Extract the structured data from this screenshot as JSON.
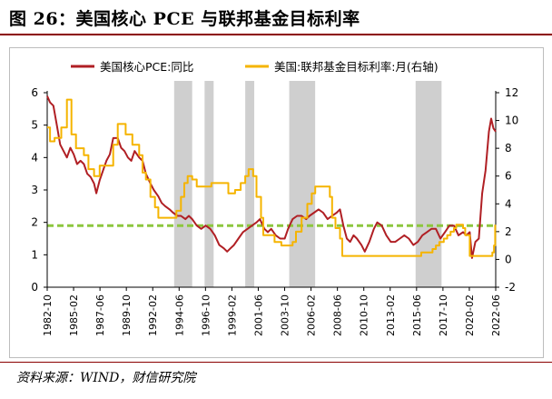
{
  "header": {
    "title": "图 26：美国核心 PCE 与联邦基金目标利率"
  },
  "footer": {
    "source": "资料来源：WIND，财信研究院"
  },
  "colors": {
    "pce": "#b01f24",
    "ffr": "#f5b400",
    "ref_line": "#8dc63f",
    "recession": "#cfcfcf",
    "rule": "#8b0000"
  },
  "chart_data": {
    "type": "line",
    "title": "图 26：美国核心 PCE 与联邦基金目标利率",
    "legend_position": "top",
    "grid": false,
    "x_range": [
      1982.75,
      2022.5
    ],
    "x_tick_labels": [
      "1982-10",
      "1985-02",
      "1987-06",
      "1989-10",
      "1992-02",
      "1994-06",
      "1996-10",
      "1999-02",
      "2001-06",
      "2003-10",
      "2006-02",
      "2008-06",
      "2010-10",
      "2013-02",
      "2015-06",
      "2017-10",
      "2020-02",
      "2022-06"
    ],
    "y_left": {
      "range": [
        0,
        6
      ],
      "ticks": [
        "0",
        "1",
        "2",
        "3",
        "4",
        "5",
        "6"
      ]
    },
    "y_right": {
      "range": [
        -2,
        12
      ],
      "ticks": [
        "-2",
        "0",
        "2",
        "4",
        "6",
        "8",
        "10",
        "12"
      ]
    },
    "reference_line": {
      "axis": "left",
      "value": 1.9
    },
    "shaded_periods": [
      [
        1994.0,
        1995.6
      ],
      [
        1996.7,
        1997.5
      ],
      [
        2000.3,
        2001.1
      ],
      [
        2004.2,
        2006.5
      ],
      [
        2015.4,
        2017.7
      ]
    ],
    "series": [
      {
        "name": "美国核心PCE:同比",
        "axis": "left",
        "style": "line",
        "points": [
          [
            1982.75,
            5.9
          ],
          [
            1983.0,
            5.7
          ],
          [
            1983.3,
            5.6
          ],
          [
            1983.6,
            5.0
          ],
          [
            1983.9,
            4.4
          ],
          [
            1984.2,
            4.2
          ],
          [
            1984.5,
            4.0
          ],
          [
            1984.8,
            4.3
          ],
          [
            1985.1,
            4.1
          ],
          [
            1985.4,
            3.8
          ],
          [
            1985.7,
            3.9
          ],
          [
            1986.0,
            3.8
          ],
          [
            1986.3,
            3.5
          ],
          [
            1986.6,
            3.4
          ],
          [
            1986.9,
            3.2
          ],
          [
            1987.1,
            2.9
          ],
          [
            1987.4,
            3.3
          ],
          [
            1987.7,
            3.6
          ],
          [
            1988.0,
            3.9
          ],
          [
            1988.3,
            4.1
          ],
          [
            1988.6,
            4.6
          ],
          [
            1989.0,
            4.6
          ],
          [
            1989.3,
            4.3
          ],
          [
            1989.6,
            4.2
          ],
          [
            1989.9,
            4.0
          ],
          [
            1990.2,
            3.9
          ],
          [
            1990.5,
            4.2
          ],
          [
            1990.9,
            4.0
          ],
          [
            1991.2,
            3.9
          ],
          [
            1991.5,
            3.5
          ],
          [
            1991.9,
            3.2
          ],
          [
            1992.2,
            3.0
          ],
          [
            1992.6,
            2.8
          ],
          [
            1992.9,
            2.6
          ],
          [
            1993.2,
            2.5
          ],
          [
            1993.6,
            2.4
          ],
          [
            1993.9,
            2.3
          ],
          [
            1994.3,
            2.2
          ],
          [
            1994.6,
            2.2
          ],
          [
            1995.0,
            2.1
          ],
          [
            1995.3,
            2.2
          ],
          [
            1995.6,
            2.1
          ],
          [
            1996.0,
            1.9
          ],
          [
            1996.4,
            1.8
          ],
          [
            1996.8,
            1.9
          ],
          [
            1997.2,
            1.8
          ],
          [
            1997.6,
            1.6
          ],
          [
            1998.0,
            1.3
          ],
          [
            1998.4,
            1.2
          ],
          [
            1998.7,
            1.1
          ],
          [
            1999.0,
            1.2
          ],
          [
            1999.3,
            1.3
          ],
          [
            1999.7,
            1.5
          ],
          [
            2000.1,
            1.7
          ],
          [
            2000.5,
            1.8
          ],
          [
            2000.9,
            1.9
          ],
          [
            2001.3,
            2.0
          ],
          [
            2001.6,
            2.1
          ],
          [
            2002.0,
            1.8
          ],
          [
            2002.3,
            1.7
          ],
          [
            2002.6,
            1.8
          ],
          [
            2003.0,
            1.6
          ],
          [
            2003.4,
            1.5
          ],
          [
            2003.8,
            1.5
          ],
          [
            2004.1,
            1.8
          ],
          [
            2004.5,
            2.1
          ],
          [
            2004.9,
            2.2
          ],
          [
            2005.3,
            2.2
          ],
          [
            2005.7,
            2.1
          ],
          [
            2006.0,
            2.2
          ],
          [
            2006.4,
            2.3
          ],
          [
            2006.8,
            2.4
          ],
          [
            2007.2,
            2.3
          ],
          [
            2007.6,
            2.1
          ],
          [
            2008.0,
            2.2
          ],
          [
            2008.4,
            2.3
          ],
          [
            2008.7,
            2.4
          ],
          [
            2009.0,
            1.9
          ],
          [
            2009.3,
            1.5
          ],
          [
            2009.6,
            1.4
          ],
          [
            2009.9,
            1.6
          ],
          [
            2010.2,
            1.5
          ],
          [
            2010.6,
            1.3
          ],
          [
            2010.9,
            1.1
          ],
          [
            2011.3,
            1.4
          ],
          [
            2011.7,
            1.8
          ],
          [
            2012.0,
            2.0
          ],
          [
            2012.4,
            1.9
          ],
          [
            2012.8,
            1.6
          ],
          [
            2013.2,
            1.4
          ],
          [
            2013.6,
            1.4
          ],
          [
            2014.0,
            1.5
          ],
          [
            2014.4,
            1.6
          ],
          [
            2014.8,
            1.5
          ],
          [
            2015.2,
            1.3
          ],
          [
            2015.6,
            1.4
          ],
          [
            2016.0,
            1.6
          ],
          [
            2016.4,
            1.7
          ],
          [
            2016.8,
            1.8
          ],
          [
            2017.2,
            1.8
          ],
          [
            2017.6,
            1.5
          ],
          [
            2018.0,
            1.7
          ],
          [
            2018.4,
            1.9
          ],
          [
            2018.8,
            1.9
          ],
          [
            2019.2,
            1.6
          ],
          [
            2019.6,
            1.7
          ],
          [
            2019.9,
            1.6
          ],
          [
            2020.2,
            1.7
          ],
          [
            2020.4,
            0.9
          ],
          [
            2020.7,
            1.4
          ],
          [
            2021.0,
            1.5
          ],
          [
            2021.3,
            2.9
          ],
          [
            2021.6,
            3.6
          ],
          [
            2021.9,
            4.8
          ],
          [
            2022.1,
            5.2
          ],
          [
            2022.3,
            4.9
          ],
          [
            2022.5,
            4.8
          ]
        ]
      },
      {
        "name": "美国:联邦基金目标利率:月(右轴)",
        "axis": "right",
        "style": "step",
        "points": [
          [
            1982.75,
            9.5
          ],
          [
            1983.0,
            8.5
          ],
          [
            1983.4,
            8.75
          ],
          [
            1984.0,
            9.5
          ],
          [
            1984.5,
            11.5
          ],
          [
            1984.9,
            9.0
          ],
          [
            1985.3,
            8.0
          ],
          [
            1986.0,
            7.5
          ],
          [
            1986.4,
            6.5
          ],
          [
            1986.9,
            6.0
          ],
          [
            1987.4,
            6.75
          ],
          [
            1987.8,
            6.75
          ],
          [
            1988.2,
            6.75
          ],
          [
            1988.6,
            8.25
          ],
          [
            1989.0,
            9.75
          ],
          [
            1989.4,
            9.75
          ],
          [
            1989.7,
            9.0
          ],
          [
            1990.3,
            8.25
          ],
          [
            1990.9,
            7.5
          ],
          [
            1991.2,
            6.25
          ],
          [
            1991.5,
            5.75
          ],
          [
            1991.9,
            4.5
          ],
          [
            1992.3,
            3.75
          ],
          [
            1992.6,
            3.0
          ],
          [
            1993.2,
            3.0
          ],
          [
            1993.9,
            3.0
          ],
          [
            1994.2,
            3.5
          ],
          [
            1994.6,
            4.5
          ],
          [
            1994.9,
            5.5
          ],
          [
            1995.2,
            6.0
          ],
          [
            1995.6,
            5.75
          ],
          [
            1996.0,
            5.25
          ],
          [
            1996.8,
            5.25
          ],
          [
            1997.3,
            5.5
          ],
          [
            1998.0,
            5.5
          ],
          [
            1998.8,
            4.75
          ],
          [
            1999.4,
            5.0
          ],
          [
            1999.9,
            5.5
          ],
          [
            2000.3,
            6.0
          ],
          [
            2000.6,
            6.5
          ],
          [
            2001.0,
            6.0
          ],
          [
            2001.3,
            4.5
          ],
          [
            2001.7,
            3.0
          ],
          [
            2001.9,
            1.75
          ],
          [
            2002.5,
            1.75
          ],
          [
            2002.9,
            1.25
          ],
          [
            2003.5,
            1.0
          ],
          [
            2004.0,
            1.0
          ],
          [
            2004.5,
            1.25
          ],
          [
            2004.8,
            2.0
          ],
          [
            2005.3,
            3.0
          ],
          [
            2005.8,
            4.0
          ],
          [
            2006.2,
            4.75
          ],
          [
            2006.5,
            5.25
          ],
          [
            2007.0,
            5.25
          ],
          [
            2007.6,
            5.25
          ],
          [
            2007.8,
            4.5
          ],
          [
            2008.0,
            3.0
          ],
          [
            2008.3,
            2.25
          ],
          [
            2008.7,
            1.5
          ],
          [
            2008.9,
            0.25
          ],
          [
            2010.0,
            0.25
          ],
          [
            2012.0,
            0.25
          ],
          [
            2014.0,
            0.25
          ],
          [
            2015.9,
            0.5
          ],
          [
            2016.9,
            0.75
          ],
          [
            2017.2,
            1.0
          ],
          [
            2017.5,
            1.25
          ],
          [
            2017.9,
            1.5
          ],
          [
            2018.2,
            1.75
          ],
          [
            2018.5,
            2.0
          ],
          [
            2018.8,
            2.25
          ],
          [
            2019.0,
            2.5
          ],
          [
            2019.5,
            2.5
          ],
          [
            2019.6,
            2.25
          ],
          [
            2019.8,
            1.75
          ],
          [
            2020.1,
            1.75
          ],
          [
            2020.2,
            0.25
          ],
          [
            2021.0,
            0.25
          ],
          [
            2022.1,
            0.25
          ],
          [
            2022.2,
            0.5
          ],
          [
            2022.35,
            1.0
          ],
          [
            2022.45,
            2.5
          ]
        ]
      }
    ]
  }
}
